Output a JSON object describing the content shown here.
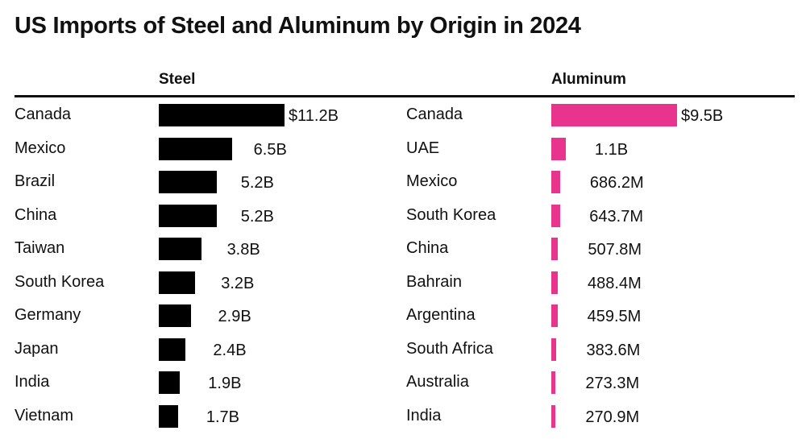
{
  "chart_data": [
    {
      "type": "bar",
      "orientation": "horizontal",
      "title": "US Imports of Steel and Aluminum by Origin in 2024",
      "panel_title": "Steel",
      "categories": [
        "Canada",
        "Mexico",
        "Brazil",
        "China",
        "Taiwan",
        "South Korea",
        "Germany",
        "Japan",
        "India",
        "Vietnam"
      ],
      "values": [
        11.2,
        6.5,
        5.2,
        5.2,
        3.8,
        3.2,
        2.9,
        2.4,
        1.9,
        1.7
      ],
      "unit": "USD billions",
      "labels": [
        "$11.2B",
        "6.5B",
        "5.2B",
        "5.2B",
        "3.8B",
        "3.2B",
        "2.9B",
        "2.4B",
        "1.9B",
        "1.7B"
      ],
      "color": "#000000",
      "xlabel": "",
      "ylabel": "",
      "grid": false
    },
    {
      "type": "bar",
      "orientation": "horizontal",
      "panel_title": "Aluminum",
      "categories": [
        "Canada",
        "UAE",
        "Mexico",
        "South Korea",
        "China",
        "Bahrain",
        "Argentina",
        "South Africa",
        "Australia",
        "India"
      ],
      "values": [
        9.5,
        1.1,
        0.6862,
        0.6437,
        0.5078,
        0.4884,
        0.4595,
        0.3836,
        0.2733,
        0.2709
      ],
      "unit": "USD billions",
      "labels": [
        "$9.5B",
        "1.1B",
        "686.2M",
        "643.7M",
        "507.8M",
        "488.4M",
        "459.5M",
        "383.6M",
        "273.3M",
        "270.9M"
      ],
      "color": "#e8348c",
      "xlabel": "",
      "ylabel": "",
      "grid": false
    }
  ]
}
